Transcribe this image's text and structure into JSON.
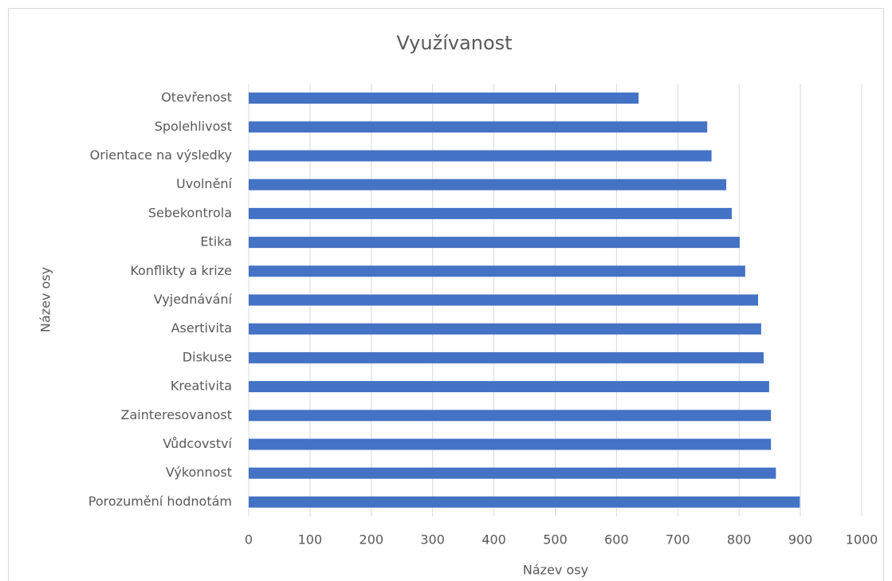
{
  "chart_data": {
    "type": "barh",
    "title": "Využívanost",
    "xlabel": "Název osy",
    "ylabel": "Název osy",
    "categories": [
      "Otevřenost",
      "Spolehlivost",
      "Orientace na výsledky",
      "Uvolnění",
      "Sebekontrola",
      "Etika",
      "Konflikty a krize",
      "Vyjednávání",
      "Asertivita",
      "Diskuse",
      "Kreativita",
      "Zainteresovanost",
      "Vůdcovství",
      "Výkonnost",
      "Porozumění hodnotám"
    ],
    "values": [
      636,
      748,
      755,
      779,
      788,
      801,
      810,
      831,
      836,
      840,
      849,
      852,
      852,
      860,
      899
    ],
    "color": "#4472c4",
    "xlim": [
      0,
      1000
    ],
    "xticks": [
      0,
      100,
      200,
      300,
      400,
      500,
      600,
      700,
      800,
      900,
      1000
    ],
    "grid": true
  }
}
